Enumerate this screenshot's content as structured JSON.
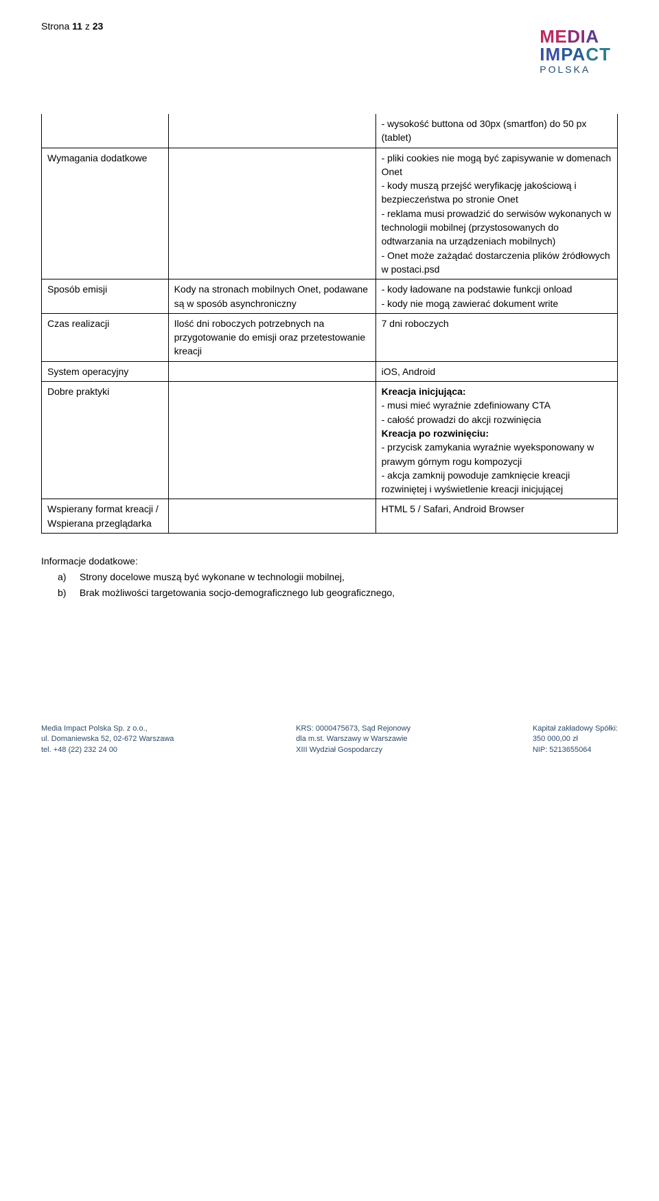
{
  "page": {
    "prefix": "Strona ",
    "current": "11",
    "sep": " z ",
    "total": "23"
  },
  "logo": {
    "line1a": "ME",
    "line1b": "DI",
    "line1c": "A",
    "line2a": "IM",
    "line2b": "PA",
    "line2c": "CT",
    "line3": "POLSKA"
  },
  "rows": {
    "r0": {
      "c3": "- wysokość buttona od 30px (smartfon) do 50 px (tablet)"
    },
    "r1": {
      "c1": "Wymagania dodatkowe",
      "c3": "- pliki cookies nie mogą być zapisywanie w domenach Onet\n- kody muszą przejść weryfikację jakościową i bezpieczeństwa po stronie Onet\n- reklama musi prowadzić do serwisów wykonanych w technologii mobilnej (przystosowanych do odtwarzania na urządzeniach mobilnych)\n- Onet może zażądać dostarczenia plików źródłowych w postaci.psd"
    },
    "r2": {
      "c1": "Sposób emisji",
      "c2": "Kody na stronach mobilnych Onet, podawane są w sposób asynchroniczny",
      "c3": "- kody ładowane na podstawie funkcji onload\n- kody nie mogą zawierać dokument write"
    },
    "r3": {
      "c1": "Czas realizacji",
      "c2": "Ilość dni roboczych potrzebnych na przygotowanie do emisji oraz przetestowanie kreacji",
      "c3": "7 dni roboczych"
    },
    "r4": {
      "c1": "System operacyjny",
      "c3": "iOS, Android"
    },
    "r5": {
      "c1": "Dobre praktyki",
      "c3a": "Kreacja inicjująca:",
      "c3b": "- musi mieć wyraźnie zdefiniowany CTA\n- całość prowadzi do akcji rozwinięcia",
      "c3c": "Kreacja po rozwinięciu:",
      "c3d": "- przycisk zamykania wyraźnie wyeksponowany w prawym górnym rogu kompozycji\n- akcja zamknij powoduje zamknięcie kreacji rozwiniętej i wyświetlenie kreacji inicjującej"
    },
    "r6": {
      "c1": "Wspierany format kreacji / Wspierana przeglądarka",
      "c3": "HTML 5 / Safari, Android Browser"
    }
  },
  "extra": {
    "heading": "Informacje dodatkowe:",
    "a_label": "a)",
    "a_text": "Strony docelowe muszą być wykonane w technologii mobilnej,",
    "b_label": "b)",
    "b_text": "Brak możliwości targetowania socjo-demograficznego lub geograficznego,"
  },
  "footer": {
    "left1": "Media Impact Polska Sp. z o.o.,",
    "left2": "ul. Domaniewska 52, 02-672 Warszawa",
    "left3": "tel. +48 (22) 232 24 00",
    "mid1": "KRS: 0000475673, Sąd Rejonowy",
    "mid2": "dla m.st. Warszawy w Warszawie",
    "mid3": "XIII Wydział Gospodarczy",
    "right1": "Kapitał zakładowy Spółki:",
    "right2": "350 000,00 zł",
    "right3": "NIP: 5213655064"
  }
}
